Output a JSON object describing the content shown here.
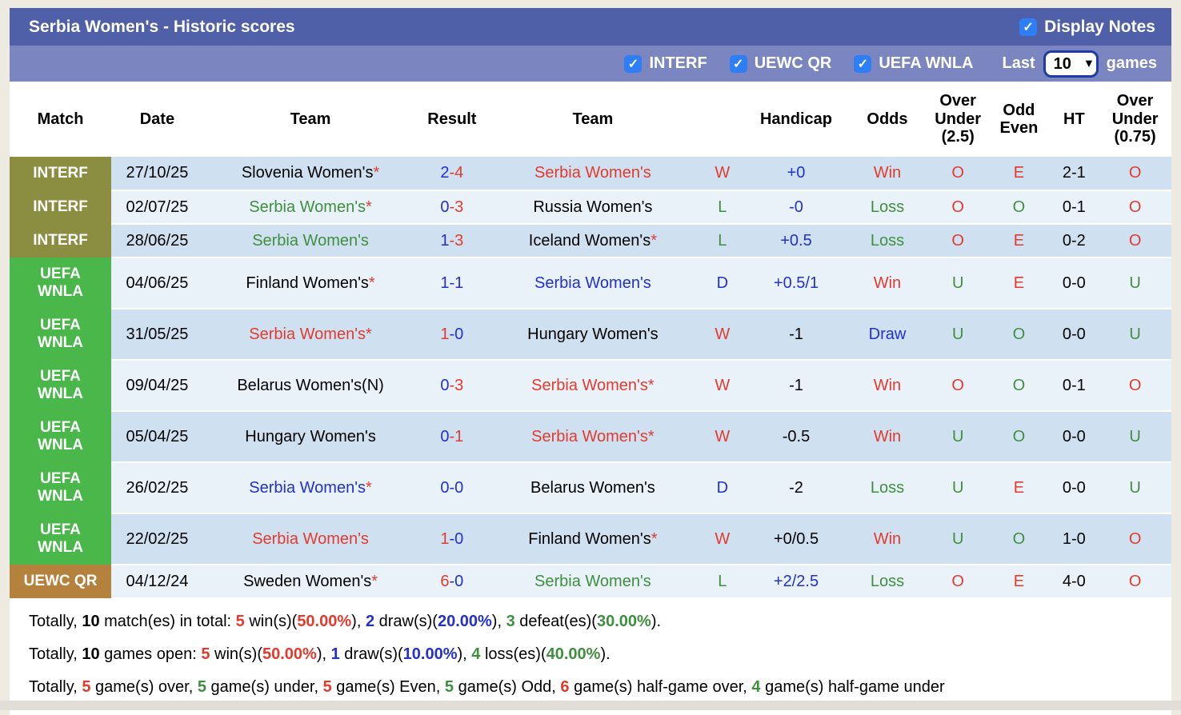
{
  "colors": {
    "red": "#e23b2e",
    "blue": "#2230cc",
    "green": "#3f8f3f",
    "black": "#000000",
    "white": "#ffffff",
    "olive": "#8b8d41",
    "comp_green": "#4ab74b",
    "camel": "#b5823d",
    "checkbox_blue": "#2e7ef5",
    "titlebar": "#5060a8",
    "filterbar": "#7b85bf",
    "row_dark": "#cfe1f1",
    "row_light": "#e9f2f9"
  },
  "title_bar": {
    "title": "Serbia Women's - Historic scores",
    "display_notes": {
      "label": "Display Notes",
      "checked": true
    },
    "check_glyph": "✓"
  },
  "filter_bar": {
    "filters": [
      {
        "label": "INTERF",
        "checked": true
      },
      {
        "label": "UEWC QR",
        "checked": true
      },
      {
        "label": "UEFA WNLA",
        "checked": true
      }
    ],
    "last_label": "Last",
    "games_label": "games",
    "selected_games": "10",
    "chevron_glyph": "▾"
  },
  "table": {
    "headers": [
      "Match",
      "Date",
      "Team",
      "Result",
      "Team",
      "",
      "Handicap",
      "Odds",
      "Over\nUnder\n(2.5)",
      "Odd\nEven",
      "HT",
      "Over\nUnder\n(0.75)"
    ],
    "col_widths": [
      "8.75%",
      "7.9%",
      "18.5%",
      "5.85%",
      "18.4%",
      "3.9%",
      "8.8%",
      "6.9%",
      "5.25%",
      "5.25%",
      "4.25%",
      "6.25%"
    ],
    "rows": [
      {
        "comp": "INTERF",
        "comp_color": "olive",
        "date": "27/10/25",
        "team1": {
          "name": "Slovenia Women's",
          "star": true,
          "color": "black"
        },
        "result": {
          "s1": "2",
          "c1": "blue",
          "s2": "-4",
          "c2": "red"
        },
        "team2": {
          "name": "Serbia Women's",
          "star": false,
          "color": "red"
        },
        "wl": {
          "t": "W",
          "color": "red"
        },
        "handicap": {
          "t": "+0",
          "color": "blue"
        },
        "odds": {
          "t": "Win",
          "color": "red"
        },
        "ou25": {
          "t": "O",
          "color": "red"
        },
        "oe": {
          "t": "E",
          "color": "red"
        },
        "ht": "2-1",
        "ou075": {
          "t": "O",
          "color": "red"
        }
      },
      {
        "comp": "INTERF",
        "comp_color": "olive",
        "date": "02/07/25",
        "team1": {
          "name": "Serbia Women's",
          "star": true,
          "color": "green"
        },
        "result": {
          "s1": "0",
          "c1": "blue",
          "s2": "-3",
          "c2": "red"
        },
        "team2": {
          "name": "Russia Women's",
          "star": false,
          "color": "black"
        },
        "wl": {
          "t": "L",
          "color": "green"
        },
        "handicap": {
          "t": "-0",
          "color": "blue"
        },
        "odds": {
          "t": "Loss",
          "color": "green"
        },
        "ou25": {
          "t": "O",
          "color": "red"
        },
        "oe": {
          "t": "O",
          "color": "green"
        },
        "ht": "0-1",
        "ou075": {
          "t": "O",
          "color": "red"
        }
      },
      {
        "comp": "INTERF",
        "comp_color": "olive",
        "date": "28/06/25",
        "team1": {
          "name": "Serbia Women's",
          "star": false,
          "color": "green"
        },
        "result": {
          "s1": "1",
          "c1": "blue",
          "s2": "-3",
          "c2": "red"
        },
        "team2": {
          "name": "Iceland Women's",
          "star": true,
          "color": "black"
        },
        "wl": {
          "t": "L",
          "color": "green"
        },
        "handicap": {
          "t": "+0.5",
          "color": "blue"
        },
        "odds": {
          "t": "Loss",
          "color": "green"
        },
        "ou25": {
          "t": "O",
          "color": "red"
        },
        "oe": {
          "t": "E",
          "color": "red"
        },
        "ht": "0-2",
        "ou075": {
          "t": "O",
          "color": "red"
        }
      },
      {
        "comp": "UEFA\nWNLA",
        "comp_color": "comp_green",
        "date": "04/06/25",
        "team1": {
          "name": "Finland Women's",
          "star": true,
          "color": "black"
        },
        "result": {
          "s1": "1",
          "c1": "blue",
          "s2": "-1",
          "c2": "blue"
        },
        "team2": {
          "name": "Serbia Women's",
          "star": false,
          "color": "blue"
        },
        "wl": {
          "t": "D",
          "color": "blue"
        },
        "handicap": {
          "t": "+0.5/1",
          "color": "blue"
        },
        "odds": {
          "t": "Win",
          "color": "red"
        },
        "ou25": {
          "t": "U",
          "color": "green"
        },
        "oe": {
          "t": "E",
          "color": "red"
        },
        "ht": "0-0",
        "ou075": {
          "t": "U",
          "color": "green"
        }
      },
      {
        "comp": "UEFA\nWNLA",
        "comp_color": "comp_green",
        "date": "31/05/25",
        "team1": {
          "name": "Serbia Women's",
          "star": true,
          "color": "red"
        },
        "result": {
          "s1": "1",
          "c1": "red",
          "s2": "-0",
          "c2": "blue"
        },
        "team2": {
          "name": "Hungary Women's",
          "star": false,
          "color": "black"
        },
        "wl": {
          "t": "W",
          "color": "red"
        },
        "handicap": {
          "t": "-1",
          "color": "black"
        },
        "odds": {
          "t": "Draw",
          "color": "blue"
        },
        "ou25": {
          "t": "U",
          "color": "green"
        },
        "oe": {
          "t": "O",
          "color": "green"
        },
        "ht": "0-0",
        "ou075": {
          "t": "U",
          "color": "green"
        }
      },
      {
        "comp": "UEFA\nWNLA",
        "comp_color": "comp_green",
        "date": "09/04/25",
        "team1": {
          "name": "Belarus Women's(N)",
          "star": false,
          "color": "black"
        },
        "result": {
          "s1": "0",
          "c1": "blue",
          "s2": "-3",
          "c2": "red"
        },
        "team2": {
          "name": "Serbia Women's",
          "star": true,
          "color": "red"
        },
        "wl": {
          "t": "W",
          "color": "red"
        },
        "handicap": {
          "t": "-1",
          "color": "black"
        },
        "odds": {
          "t": "Win",
          "color": "red"
        },
        "ou25": {
          "t": "O",
          "color": "red"
        },
        "oe": {
          "t": "O",
          "color": "green"
        },
        "ht": "0-1",
        "ou075": {
          "t": "O",
          "color": "red"
        }
      },
      {
        "comp": "UEFA\nWNLA",
        "comp_color": "comp_green",
        "date": "05/04/25",
        "team1": {
          "name": "Hungary Women's",
          "star": false,
          "color": "black"
        },
        "result": {
          "s1": "0",
          "c1": "blue",
          "s2": "-1",
          "c2": "red"
        },
        "team2": {
          "name": "Serbia Women's",
          "star": true,
          "color": "red"
        },
        "wl": {
          "t": "W",
          "color": "red"
        },
        "handicap": {
          "t": "-0.5",
          "color": "black"
        },
        "odds": {
          "t": "Win",
          "color": "red"
        },
        "ou25": {
          "t": "U",
          "color": "green"
        },
        "oe": {
          "t": "O",
          "color": "green"
        },
        "ht": "0-0",
        "ou075": {
          "t": "U",
          "color": "green"
        }
      },
      {
        "comp": "UEFA\nWNLA",
        "comp_color": "comp_green",
        "date": "26/02/25",
        "team1": {
          "name": "Serbia Women's",
          "star": true,
          "color": "blue"
        },
        "result": {
          "s1": "0",
          "c1": "blue",
          "s2": "-0",
          "c2": "blue"
        },
        "team2": {
          "name": "Belarus Women's",
          "star": false,
          "color": "black"
        },
        "wl": {
          "t": "D",
          "color": "blue"
        },
        "handicap": {
          "t": "-2",
          "color": "black"
        },
        "odds": {
          "t": "Loss",
          "color": "green"
        },
        "ou25": {
          "t": "U",
          "color": "green"
        },
        "oe": {
          "t": "E",
          "color": "red"
        },
        "ht": "0-0",
        "ou075": {
          "t": "U",
          "color": "green"
        }
      },
      {
        "comp": "UEFA\nWNLA",
        "comp_color": "comp_green",
        "date": "22/02/25",
        "team1": {
          "name": "Serbia Women's",
          "star": false,
          "color": "red"
        },
        "result": {
          "s1": "1",
          "c1": "red",
          "s2": "-0",
          "c2": "blue"
        },
        "team2": {
          "name": "Finland Women's",
          "star": true,
          "color": "black"
        },
        "wl": {
          "t": "W",
          "color": "red"
        },
        "handicap": {
          "t": "+0/0.5",
          "color": "black"
        },
        "odds": {
          "t": "Win",
          "color": "red"
        },
        "ou25": {
          "t": "U",
          "color": "green"
        },
        "oe": {
          "t": "O",
          "color": "green"
        },
        "ht": "1-0",
        "ou075": {
          "t": "O",
          "color": "red"
        }
      },
      {
        "comp": "UEWC QR",
        "comp_color": "camel",
        "date": "04/12/24",
        "team1": {
          "name": "Sweden Women's",
          "star": true,
          "color": "black"
        },
        "result": {
          "s1": "6",
          "c1": "red",
          "s2": "-0",
          "c2": "blue"
        },
        "team2": {
          "name": "Serbia Women's",
          "star": false,
          "color": "green"
        },
        "wl": {
          "t": "L",
          "color": "green"
        },
        "handicap": {
          "t": "+2/2.5",
          "color": "blue"
        },
        "odds": {
          "t": "Loss",
          "color": "green"
        },
        "ou25": {
          "t": "O",
          "color": "red"
        },
        "oe": {
          "t": "E",
          "color": "red"
        },
        "ht": "4-0",
        "ou075": {
          "t": "O",
          "color": "red"
        }
      }
    ]
  },
  "summary": {
    "lines": [
      [
        {
          "t": "Totally, ",
          "c": "black",
          "b": false
        },
        {
          "t": "10",
          "c": "black",
          "b": true
        },
        {
          "t": " match(es) in total: ",
          "c": "black",
          "b": false
        },
        {
          "t": "5",
          "c": "red",
          "b": true
        },
        {
          "t": " win(s)(",
          "c": "black",
          "b": false
        },
        {
          "t": "50.00%",
          "c": "red",
          "b": true
        },
        {
          "t": "), ",
          "c": "black",
          "b": false
        },
        {
          "t": "2",
          "c": "blue",
          "b": true
        },
        {
          "t": " draw(s)(",
          "c": "black",
          "b": false
        },
        {
          "t": "20.00%",
          "c": "blue",
          "b": true
        },
        {
          "t": "), ",
          "c": "black",
          "b": false
        },
        {
          "t": "3",
          "c": "green",
          "b": true
        },
        {
          "t": " defeat(es)(",
          "c": "black",
          "b": false
        },
        {
          "t": "30.00%",
          "c": "green",
          "b": true
        },
        {
          "t": ").",
          "c": "black",
          "b": false
        }
      ],
      [
        {
          "t": "Totally, ",
          "c": "black",
          "b": false
        },
        {
          "t": "10",
          "c": "black",
          "b": true
        },
        {
          "t": " games open: ",
          "c": "black",
          "b": false
        },
        {
          "t": "5",
          "c": "red",
          "b": true
        },
        {
          "t": " win(s)(",
          "c": "black",
          "b": false
        },
        {
          "t": "50.00%",
          "c": "red",
          "b": true
        },
        {
          "t": "), ",
          "c": "black",
          "b": false
        },
        {
          "t": "1",
          "c": "blue",
          "b": true
        },
        {
          "t": " draw(s)(",
          "c": "black",
          "b": false
        },
        {
          "t": "10.00%",
          "c": "blue",
          "b": true
        },
        {
          "t": "), ",
          "c": "black",
          "b": false
        },
        {
          "t": "4",
          "c": "green",
          "b": true
        },
        {
          "t": " loss(es)(",
          "c": "black",
          "b": false
        },
        {
          "t": "40.00%",
          "c": "green",
          "b": true
        },
        {
          "t": ").",
          "c": "black",
          "b": false
        }
      ],
      [
        {
          "t": "Totally, ",
          "c": "black",
          "b": false
        },
        {
          "t": "5",
          "c": "red",
          "b": true
        },
        {
          "t": " game(s) over, ",
          "c": "black",
          "b": false
        },
        {
          "t": "5",
          "c": "green",
          "b": true
        },
        {
          "t": " game(s) under, ",
          "c": "black",
          "b": false
        },
        {
          "t": "5",
          "c": "red",
          "b": true
        },
        {
          "t": " game(s) Even, ",
          "c": "black",
          "b": false
        },
        {
          "t": "5",
          "c": "green",
          "b": true
        },
        {
          "t": " game(s) Odd, ",
          "c": "black",
          "b": false
        },
        {
          "t": "6",
          "c": "red",
          "b": true
        },
        {
          "t": " game(s) half-game over, ",
          "c": "black",
          "b": false
        },
        {
          "t": "4",
          "c": "green",
          "b": true
        },
        {
          "t": " game(s) half-game under",
          "c": "black",
          "b": false
        }
      ]
    ]
  }
}
